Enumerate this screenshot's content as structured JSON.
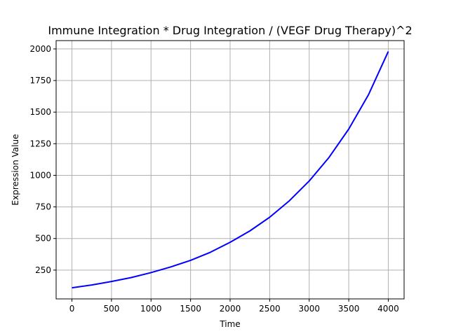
{
  "chart_data": {
    "type": "line",
    "title": "Immune Integration * Drug Integration / (VEGF Drug Therapy)^2",
    "xlabel": "Time",
    "ylabel": "Expression Value",
    "xlim": [
      -200,
      4200
    ],
    "ylim": [
      22,
      2066
    ],
    "xticks": [
      0,
      500,
      1000,
      1500,
      2000,
      2500,
      3000,
      3500,
      4000
    ],
    "yticks": [
      250,
      500,
      750,
      1000,
      1250,
      1500,
      1750,
      2000
    ],
    "xtick_labels": [
      "0",
      "500",
      "1000",
      "1500",
      "2000",
      "2500",
      "3000",
      "3500",
      "4000"
    ],
    "ytick_labels": [
      "250",
      "500",
      "750",
      "1000",
      "1250",
      "1500",
      "1750",
      "2000"
    ],
    "grid": true,
    "series": [
      {
        "color": "#0000ff",
        "x": [
          0,
          250,
          500,
          750,
          1000,
          1250,
          1500,
          1750,
          2000,
          2250,
          2500,
          2750,
          3000,
          3250,
          3500,
          3750,
          4000
        ],
        "y": [
          110,
          132,
          160,
          191,
          230,
          275,
          327,
          391,
          470,
          560,
          668,
          799,
          955,
          1141,
          1366,
          1638,
          1980
        ]
      }
    ]
  }
}
